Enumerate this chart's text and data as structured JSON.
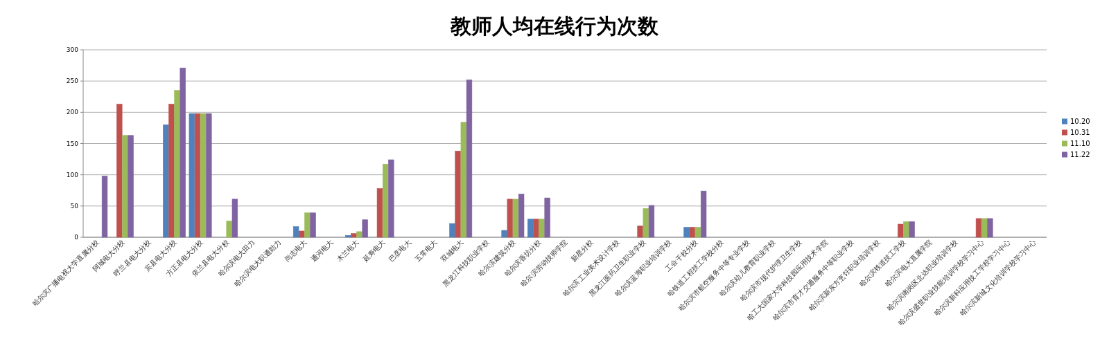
{
  "chart_data": {
    "type": "bar",
    "title": "教师人均在线行为次数",
    "categories": [
      "哈尔滨广播电视大学直属分校",
      "阿城电大分校",
      "呼兰县电大分校",
      "宾县电大分校",
      "方正县电大分校",
      "依兰县电大分校",
      "哈尔滨电大田力",
      "哈尔滨电大职通助力",
      "尚志电大",
      "通河电大",
      "木兰电大",
      "延寿电大",
      "巴彦电大",
      "五常电大",
      "双城电大",
      "黑龙江科技职业学校",
      "哈尔滨建筑分校",
      "哈尔滨香坊分校",
      "哈尔滨劳动技师学院",
      "新星分校",
      "哈尔滨工业美术设计学校",
      "黑龙江医药卫生职业学校",
      "哈尔滨蓝海职业培训学校",
      "工会干校分校",
      "哈铁道工程技工学校分校",
      "哈尔滨市航空服务中等专业学校",
      "哈尔滨幼儿教育职业学校",
      "哈尔滨市现代护理卫生学校",
      "哈工大国家大学科技园应用技术学院",
      "哈尔滨市育才交通服务中等职业学校",
      "哈尔滨新东方烹饪职业培训学校",
      "哈尔滨铁道技工学校",
      "哈尔滨电大直属学院",
      "哈尔滨南岗区北达职业培训学校",
      "哈尔滨盛世职业技能培训学校学习中心",
      "哈尔滨新科应用技工学校学习中心",
      "哈尔滨新城文化培训学校学习中心"
    ],
    "series": [
      {
        "name": "10.20",
        "color": "#4f81bd",
        "values": [
          0,
          0,
          0,
          180,
          198,
          0,
          0,
          0,
          17,
          0,
          3,
          0,
          0,
          0,
          22,
          0,
          11,
          29,
          0,
          0,
          0,
          0,
          0,
          16,
          0,
          0,
          0,
          0,
          0,
          0,
          0,
          0,
          0,
          0,
          0,
          0,
          0
        ]
      },
      {
        "name": "10.31",
        "color": "#c0504d",
        "values": [
          0,
          213,
          0,
          213,
          198,
          0,
          0,
          0,
          10,
          0,
          6,
          78,
          0,
          0,
          138,
          0,
          61,
          29,
          0,
          0,
          0,
          18,
          0,
          16,
          0,
          0,
          0,
          0,
          0,
          0,
          0,
          21,
          0,
          0,
          30,
          0,
          0
        ]
      },
      {
        "name": "11.10",
        "color": "#9bbb59",
        "values": [
          0,
          163,
          0,
          235,
          198,
          26,
          0,
          0,
          39,
          0,
          9,
          117,
          0,
          0,
          184,
          0,
          61,
          29,
          0,
          0,
          0,
          46,
          0,
          16,
          0,
          0,
          0,
          0,
          0,
          0,
          0,
          25,
          0,
          0,
          30,
          0,
          0
        ]
      },
      {
        "name": "11.22",
        "color": "#8064a2",
        "values": [
          98,
          163,
          0,
          271,
          198,
          61,
          0,
          0,
          39,
          0,
          28,
          124,
          0,
          0,
          252,
          0,
          69,
          63,
          0,
          0,
          0,
          51,
          0,
          74,
          0,
          0,
          0,
          0,
          0,
          0,
          0,
          25,
          0,
          0,
          30,
          0,
          0
        ]
      }
    ],
    "ylim": [
      0,
      300
    ],
    "yticks": [
      0,
      50,
      100,
      150,
      200,
      250,
      300
    ],
    "grid": "y",
    "legend": "right"
  }
}
